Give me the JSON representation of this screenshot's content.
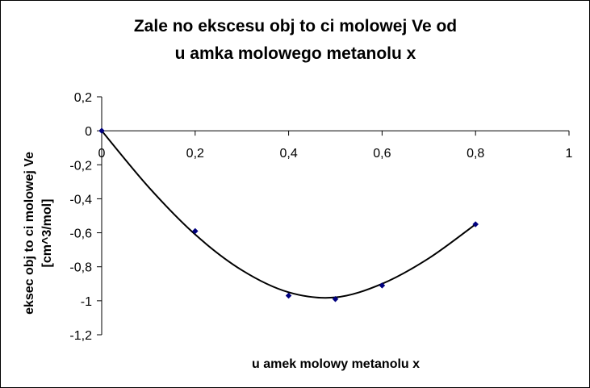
{
  "chart_data": {
    "type": "scatter",
    "title_lines": [
      "Zale  no     ekscesu obj  to  ci molowej Ve od",
      "u amka molowego metanolu x"
    ],
    "xlabel": "u amek molowy metanolu x",
    "ylabel_lines": [
      "eksec obj  to  ci molowej Ve",
      "[cm^3/mol]"
    ],
    "xlim": [
      0,
      1
    ],
    "ylim": [
      -1.2,
      0.2
    ],
    "x_ticks": [
      {
        "value": 0,
        "label": "0"
      },
      {
        "value": 0.2,
        "label": "0,2"
      },
      {
        "value": 0.4,
        "label": "0,4"
      },
      {
        "value": 0.6,
        "label": "0,6"
      },
      {
        "value": 0.8,
        "label": "0,8"
      },
      {
        "value": 1,
        "label": "1"
      }
    ],
    "y_ticks": [
      {
        "value": 0.2,
        "label": "0,2"
      },
      {
        "value": 0,
        "label": "0"
      },
      {
        "value": -0.2,
        "label": "-0,2"
      },
      {
        "value": -0.4,
        "label": "-0,4"
      },
      {
        "value": -0.6,
        "label": "-0,6"
      },
      {
        "value": -0.8,
        "label": "-0,8"
      },
      {
        "value": -1,
        "label": "-1"
      },
      {
        "value": -1.2,
        "label": "-1,2"
      }
    ],
    "series": [
      {
        "marker_color": "#00007f",
        "points": [
          {
            "x": 0,
            "y": 0
          },
          {
            "x": 0.2,
            "y": -0.59
          },
          {
            "x": 0.4,
            "y": -0.97
          },
          {
            "x": 0.5,
            "y": -0.99
          },
          {
            "x": 0.6,
            "y": -0.91
          },
          {
            "x": 0.8,
            "y": -0.55
          }
        ]
      }
    ],
    "trendline": {
      "type": "polynomial",
      "color": "#000000",
      "points": [
        {
          "x": 0,
          "y": 0
        },
        {
          "x": 0.1,
          "y": -0.33
        },
        {
          "x": 0.2,
          "y": -0.61
        },
        {
          "x": 0.3,
          "y": -0.82
        },
        {
          "x": 0.4,
          "y": -0.95
        },
        {
          "x": 0.5,
          "y": -0.98
        },
        {
          "x": 0.6,
          "y": -0.9
        },
        {
          "x": 0.7,
          "y": -0.75
        },
        {
          "x": 0.8,
          "y": -0.55
        }
      ]
    },
    "grid": false,
    "legend": "none"
  }
}
